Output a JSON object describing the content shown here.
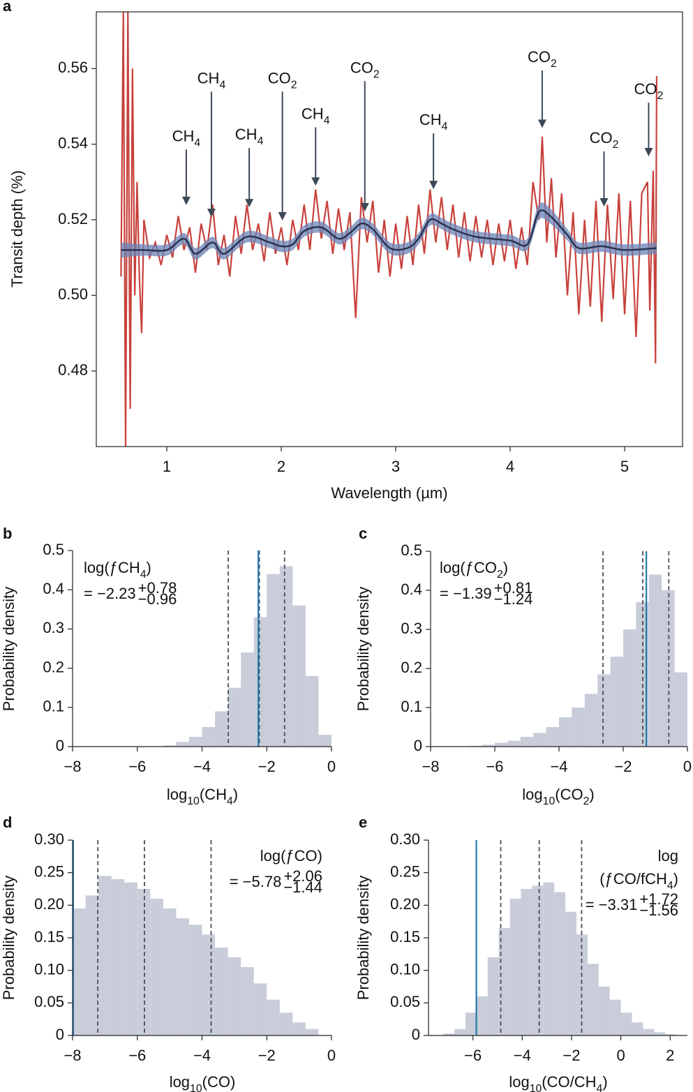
{
  "chart_data": [
    {
      "type": "line",
      "panel": "a",
      "ylabel": "Transit depth (%)",
      "xlabel": "Wavelength (µm)",
      "xlim": [
        0.384,
        5.506
      ],
      "ylim": [
        0.46,
        0.575
      ],
      "xticks": [
        1,
        2,
        3,
        4,
        5
      ],
      "yticks": [
        0.48,
        {
          "value": 0.5,
          "label": "0.50"
        },
        0.52,
        0.54,
        0.56
      ],
      "series": [
        {
          "color": "#c8413b",
          "x": [
            0.6,
            0.62,
            0.64,
            0.66,
            0.68,
            0.7,
            0.72,
            0.74,
            0.76,
            0.78,
            0.8,
            0.85,
            0.9,
            0.95,
            1.0,
            1.05,
            1.1,
            1.15,
            1.2,
            1.25,
            1.3,
            1.35,
            1.4,
            1.45,
            1.5,
            1.55,
            1.6,
            1.65,
            1.7,
            1.75,
            1.8,
            1.85,
            1.9,
            1.95,
            2.0,
            2.05,
            2.1,
            2.15,
            2.2,
            2.25,
            2.3,
            2.35,
            2.4,
            2.45,
            2.5,
            2.55,
            2.6,
            2.65,
            2.7,
            2.75,
            2.8,
            2.85,
            2.9,
            2.95,
            3.0,
            3.05,
            3.1,
            3.15,
            3.2,
            3.25,
            3.3,
            3.35,
            3.4,
            3.45,
            3.5,
            3.55,
            3.6,
            3.65,
            3.7,
            3.75,
            3.8,
            3.85,
            3.9,
            3.95,
            4.0,
            4.05,
            4.1,
            4.15,
            4.2,
            4.25,
            4.28,
            4.32,
            4.36,
            4.4,
            4.45,
            4.5,
            4.55,
            4.6,
            4.65,
            4.7,
            4.75,
            4.8,
            4.85,
            4.9,
            4.95,
            5.0,
            5.05,
            5.1,
            5.15,
            5.2,
            5.22,
            5.25,
            5.27,
            5.28
          ],
          "values": [
            0.505,
            0.575,
            0.46,
            0.575,
            0.47,
            0.56,
            0.5,
            0.53,
            0.505,
            0.49,
            0.52,
            0.51,
            0.514,
            0.508,
            0.516,
            0.51,
            0.521,
            0.512,
            0.518,
            0.506,
            0.519,
            0.512,
            0.524,
            0.508,
            0.516,
            0.505,
            0.521,
            0.511,
            0.524,
            0.512,
            0.519,
            0.509,
            0.522,
            0.511,
            0.518,
            0.508,
            0.52,
            0.512,
            0.524,
            0.512,
            0.528,
            0.515,
            0.525,
            0.511,
            0.523,
            0.512,
            0.522,
            0.494,
            0.526,
            0.514,
            0.525,
            0.506,
            0.52,
            0.505,
            0.519,
            0.507,
            0.521,
            0.508,
            0.524,
            0.511,
            0.528,
            0.514,
            0.526,
            0.512,
            0.524,
            0.51,
            0.522,
            0.509,
            0.521,
            0.51,
            0.52,
            0.508,
            0.519,
            0.509,
            0.52,
            0.507,
            0.518,
            0.508,
            0.53,
            0.52,
            0.542,
            0.514,
            0.531,
            0.51,
            0.527,
            0.5,
            0.522,
            0.495,
            0.52,
            0.497,
            0.525,
            0.493,
            0.524,
            0.499,
            0.527,
            0.495,
            0.525,
            0.489,
            0.527,
            0.53,
            0.496,
            0.533,
            0.482,
            0.558
          ]
        },
        {
          "color": "#26324d",
          "band_color": "#6a83b8",
          "x": [
            0.6,
            0.8,
            1.0,
            1.15,
            1.25,
            1.4,
            1.5,
            1.7,
            1.9,
            2.0,
            2.1,
            2.2,
            2.35,
            2.5,
            2.6,
            2.7,
            2.8,
            2.95,
            3.1,
            3.2,
            3.3,
            3.4,
            3.5,
            3.7,
            4.0,
            4.15,
            4.25,
            4.35,
            4.5,
            4.6,
            4.8,
            5.0,
            5.28
          ],
          "values": [
            0.512,
            0.512,
            0.512,
            0.515,
            0.511,
            0.514,
            0.511,
            0.5155,
            0.514,
            0.513,
            0.5135,
            0.517,
            0.518,
            0.515,
            0.5165,
            0.519,
            0.5175,
            0.5125,
            0.5125,
            0.515,
            0.52,
            0.519,
            0.5175,
            0.5155,
            0.5145,
            0.5135,
            0.522,
            0.521,
            0.516,
            0.5125,
            0.513,
            0.512,
            0.5125
          ],
          "errors": [
            0.002,
            0.0015,
            0.0015,
            0.0015,
            0.0015,
            0.0015,
            0.0015,
            0.0015,
            0.0015,
            0.0015,
            0.0015,
            0.0015,
            0.0015,
            0.0015,
            0.0015,
            0.0015,
            0.0015,
            0.0015,
            0.0015,
            0.0015,
            0.0015,
            0.0015,
            0.0015,
            0.0015,
            0.0015,
            0.0015,
            0.002,
            0.002,
            0.0015,
            0.0015,
            0.0015,
            0.0015,
            0.0015
          ]
        }
      ],
      "annotations": [
        {
          "x": 1.17,
          "y": 0.5239,
          "label_y": 0.5419,
          "label": [
            {
              "text": "CH"
            },
            {
              "text": "4",
              "shift": "sub"
            }
          ]
        },
        {
          "x": 1.39,
          "y": 0.5207,
          "label_y": 0.5572,
          "label": [
            {
              "text": "CH"
            },
            {
              "text": "4",
              "shift": "sub"
            }
          ]
        },
        {
          "x": 1.72,
          "y": 0.5233,
          "label_y": 0.5423,
          "label": [
            {
              "text": "CH"
            },
            {
              "text": "4",
              "shift": "sub"
            }
          ]
        },
        {
          "x": 2.01,
          "y": 0.5198,
          "label_y": 0.5572,
          "label": [
            {
              "text": "CO"
            },
            {
              "text": "2",
              "shift": "sub"
            }
          ]
        },
        {
          "x": 2.3,
          "y": 0.529,
          "label_y": 0.5478,
          "label": [
            {
              "text": "CH"
            },
            {
              "text": "4",
              "shift": "sub"
            }
          ]
        },
        {
          "x": 2.73,
          "y": 0.5222,
          "label_y": 0.56,
          "label": [
            {
              "text": "CO"
            },
            {
              "text": "2",
              "shift": "sub"
            }
          ]
        },
        {
          "x": 3.33,
          "y": 0.5281,
          "label_y": 0.5462,
          "label": [
            {
              "text": "CH"
            },
            {
              "text": "4",
              "shift": "sub"
            }
          ]
        },
        {
          "x": 4.28,
          "y": 0.5443,
          "label_y": 0.5628,
          "label": [
            {
              "text": "CO"
            },
            {
              "text": "2",
              "shift": "sub"
            }
          ]
        },
        {
          "x": 4.82,
          "y": 0.5235,
          "label_y": 0.5414,
          "label": [
            {
              "text": "CO"
            },
            {
              "text": "2",
              "shift": "sub"
            }
          ]
        },
        {
          "x": 5.21,
          "y": 0.5368,
          "label_y": 0.5543,
          "label": [
            {
              "text": "CO"
            },
            {
              "text": "2",
              "shift": "sub"
            }
          ]
        }
      ]
    },
    {
      "type": "histogram",
      "panel": "b",
      "ylabel": "Probability density",
      "xlabel": [
        {
          "text": "log"
        },
        {
          "text": "10",
          "shift": "sub"
        },
        {
          "text": "(CH"
        },
        {
          "text": "4",
          "shift": "sub"
        },
        {
          "text": ")"
        }
      ],
      "xlim": [
        -8,
        0
      ],
      "ylim": [
        0,
        0.5
      ],
      "xticks": [
        {
          "value": -8,
          "label": "−8"
        },
        {
          "value": -6,
          "label": "−6"
        },
        {
          "value": -4,
          "label": "−4"
        },
        {
          "value": -2,
          "label": "−2"
        },
        0
      ],
      "yticks": [
        0,
        0.1,
        0.2,
        0.3,
        0.4,
        0.5
      ],
      "bins": [
        -5.2,
        -4.8,
        -4.4,
        -4.0,
        -3.6,
        -3.2,
        -2.8,
        -2.4,
        -2.0,
        -1.6,
        -1.2,
        -0.8,
        -0.4,
        0.0
      ],
      "values": [
        0.003,
        0.012,
        0.025,
        0.05,
        0.09,
        0.15,
        0.24,
        0.33,
        0.44,
        0.46,
        0.36,
        0.18,
        0.03
      ],
      "color": "#c8cdd9",
      "quantiles": [
        -3.19,
        -2.23,
        -1.45
      ],
      "quantile_color": "#4a4f5a",
      "truth": -2.26,
      "truth_color": "#2577b0",
      "annotation": [
        [
          {
            "text": "log("
          },
          {
            "text": "ƒ"
          },
          {
            "text": "CH"
          },
          {
            "text": "4",
            "shift": "sub"
          },
          {
            "text": ")"
          }
        ]
      ],
      "estimate": {
        "value": "= −2.23",
        "plus": "+0.78",
        "minus": "−0.96"
      }
    },
    {
      "type": "histogram",
      "panel": "c",
      "ylabel": "Probability density",
      "xlabel": [
        {
          "text": "log"
        },
        {
          "text": "10",
          "shift": "sub"
        },
        {
          "text": "(CO"
        },
        {
          "text": "2",
          "shift": "sub"
        },
        {
          "text": ")"
        }
      ],
      "xlim": [
        -8,
        0
      ],
      "ylim": [
        0,
        0.5
      ],
      "xticks": [
        {
          "value": -8,
          "label": "−8"
        },
        {
          "value": -6,
          "label": "−6"
        },
        {
          "value": -4,
          "label": "−4"
        },
        {
          "value": -2,
          "label": "−2"
        },
        0
      ],
      "yticks": [
        0,
        0.1,
        0.2,
        0.3,
        0.4,
        0.5
      ],
      "bins": [
        -6.8,
        -6.4,
        -6.0,
        -5.6,
        -5.2,
        -4.8,
        -4.4,
        -4.0,
        -3.6,
        -3.2,
        -2.8,
        -2.4,
        -2.0,
        -1.6,
        -1.2,
        -0.8,
        -0.4,
        0.0
      ],
      "values": [
        0.002,
        0.005,
        0.01,
        0.015,
        0.025,
        0.035,
        0.05,
        0.075,
        0.1,
        0.135,
        0.185,
        0.23,
        0.3,
        0.37,
        0.44,
        0.4,
        0.19
      ],
      "color": "#c8cdd9",
      "quantiles": [
        -2.63,
        -1.39,
        -0.58
      ],
      "quantile_color": "#4a4f5a",
      "truth": -1.28,
      "truth_color": "#2577b0",
      "annotation": [
        [
          {
            "text": "log("
          },
          {
            "text": "ƒ"
          },
          {
            "text": "CO"
          },
          {
            "text": "2",
            "shift": "sub"
          },
          {
            "text": ")"
          }
        ]
      ],
      "estimate": {
        "value": "= −1.39",
        "plus": "+0.81",
        "minus": "−1.24"
      }
    },
    {
      "type": "histogram",
      "panel": "d",
      "ylabel": "Probability density",
      "xlabel": [
        {
          "text": "log"
        },
        {
          "text": "10",
          "shift": "sub"
        },
        {
          "text": "(CO)"
        }
      ],
      "xlim": [
        -8,
        0
      ],
      "ylim": [
        0,
        0.3
      ],
      "xticks": [
        {
          "value": -8,
          "label": "−8"
        },
        {
          "value": -6,
          "label": "−6"
        },
        {
          "value": -4,
          "label": "−4"
        },
        {
          "value": -2,
          "label": "−2"
        },
        0
      ],
      "yticks": [
        0,
        0.05,
        {
          "value": 0.1,
          "label": "0.10"
        },
        0.15,
        {
          "value": 0.2,
          "label": "0.20"
        },
        0.25,
        {
          "value": 0.3,
          "label": "0.30"
        }
      ],
      "bins": [
        -8.0,
        -7.6,
        -7.2,
        -6.8,
        -6.4,
        -6.0,
        -5.6,
        -5.2,
        -4.8,
        -4.4,
        -4.0,
        -3.6,
        -3.2,
        -2.8,
        -2.4,
        -2.0,
        -1.6,
        -1.2,
        -0.8,
        -0.4
      ],
      "values": [
        0.195,
        0.215,
        0.245,
        0.24,
        0.235,
        0.225,
        0.21,
        0.195,
        0.18,
        0.17,
        0.155,
        0.135,
        0.12,
        0.105,
        0.08,
        0.055,
        0.035,
        0.02,
        0.01
      ],
      "color": "#c8cdd9",
      "quantiles": [
        -7.22,
        -5.78,
        -3.72
      ],
      "quantile_color": "#4a4f5a",
      "truth": -7.98,
      "truth_color": "#2577b0",
      "annotation": [
        [
          {
            "text": "log("
          },
          {
            "text": "ƒ"
          },
          {
            "text": "CO)"
          }
        ]
      ],
      "estimate": {
        "value": "= −5.78",
        "plus": "+2.06",
        "minus": "−1.44"
      }
    },
    {
      "type": "histogram",
      "panel": "e",
      "ylabel": "Probability density",
      "xlabel": [
        {
          "text": "log"
        },
        {
          "text": "10",
          "shift": "sub"
        },
        {
          "text": "(CO/CH"
        },
        {
          "text": "4",
          "shift": "sub"
        },
        {
          "text": ")"
        }
      ],
      "xlim": [
        -7.8,
        2.7
      ],
      "ylim": [
        0,
        0.3
      ],
      "xticks": [
        {
          "value": -6,
          "label": "−6"
        },
        {
          "value": -4,
          "label": "−4"
        },
        {
          "value": -2,
          "label": "−2"
        },
        0,
        2
      ],
      "yticks": [
        0,
        0.05,
        {
          "value": 0.1,
          "label": "0.10"
        },
        0.15,
        {
          "value": 0.2,
          "label": "0.20"
        },
        0.25,
        {
          "value": 0.3,
          "label": "0.30"
        }
      ],
      "bins": [
        -7.2,
        -6.75,
        -6.3,
        -5.85,
        -5.4,
        -4.95,
        -4.5,
        -4.05,
        -3.6,
        -3.15,
        -2.7,
        -2.25,
        -1.8,
        -1.35,
        -0.9,
        -0.45,
        0,
        0.45,
        0.9,
        1.35,
        1.8,
        2.25
      ],
      "values": [
        0.003,
        0.01,
        0.035,
        0.06,
        0.12,
        0.165,
        0.21,
        0.225,
        0.23,
        0.235,
        0.22,
        0.19,
        0.155,
        0.11,
        0.075,
        0.055,
        0.035,
        0.02,
        0.01,
        0.005,
        0.002
      ],
      "color": "#c8cdd9",
      "quantiles": [
        -4.87,
        -3.31,
        -1.59
      ],
      "quantile_color": "#4a4f5a",
      "truth": -5.86,
      "truth_color": "#2577b0",
      "annotation": [
        [
          {
            "text": "log"
          }
        ],
        [
          {
            "text": "("
          },
          {
            "text": "ƒ"
          },
          {
            "text": "CO/fCH"
          },
          {
            "text": "4",
            "shift": "sub"
          },
          {
            "text": ")"
          }
        ]
      ],
      "estimate": {
        "value": "= −3.31",
        "plus": "+1.72",
        "minus": "−1.56"
      }
    }
  ]
}
